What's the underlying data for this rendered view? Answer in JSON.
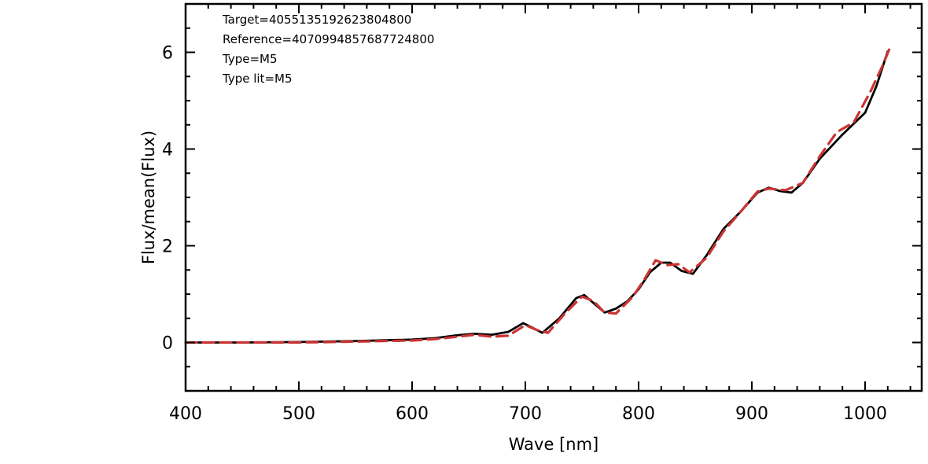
{
  "chart_data": {
    "type": "line",
    "title": "",
    "xlabel": "Wave [nm]",
    "ylabel": "Flux/mean(Flux)",
    "xlim": [
      400,
      1050
    ],
    "ylim": [
      -1,
      7
    ],
    "x_ticks": [
      400,
      500,
      600,
      700,
      800,
      900,
      1000
    ],
    "y_ticks": [
      0,
      2,
      4,
      6
    ],
    "grid": false,
    "legend": "none",
    "annotations": [
      "Target=4055135192623804800",
      "Reference=4070994857687724800",
      "Type=M5",
      "Type lit=M5"
    ],
    "series": [
      {
        "color": "#000000",
        "dash": "solid",
        "x": [
          400,
          450,
          500,
          550,
          600,
          620,
          640,
          655,
          670,
          685,
          698,
          705,
          715,
          730,
          745,
          752,
          760,
          770,
          780,
          790,
          800,
          810,
          820,
          828,
          838,
          848,
          860,
          875,
          890,
          905,
          915,
          925,
          935,
          945,
          960,
          980,
          1000,
          1010,
          1020
        ],
        "y": [
          0.0,
          0.0,
          0.01,
          0.03,
          0.06,
          0.09,
          0.15,
          0.18,
          0.16,
          0.22,
          0.4,
          0.32,
          0.2,
          0.5,
          0.92,
          0.98,
          0.82,
          0.62,
          0.7,
          0.85,
          1.1,
          1.45,
          1.65,
          1.65,
          1.48,
          1.42,
          1.8,
          2.35,
          2.7,
          3.1,
          3.2,
          3.13,
          3.1,
          3.3,
          3.8,
          4.3,
          4.75,
          5.3,
          6.02
        ]
      },
      {
        "color": "#cc3333",
        "dash": "dashed",
        "x": [
          400,
          450,
          500,
          550,
          600,
          620,
          640,
          655,
          670,
          685,
          700,
          710,
          720,
          735,
          750,
          760,
          770,
          780,
          795,
          805,
          815,
          825,
          835,
          845,
          860,
          875,
          890,
          905,
          915,
          930,
          945,
          960,
          975,
          990,
          1005,
          1015,
          1022
        ],
        "y": [
          0.0,
          0.0,
          0.0,
          0.02,
          0.04,
          0.07,
          0.12,
          0.16,
          0.12,
          0.14,
          0.36,
          0.26,
          0.2,
          0.6,
          0.95,
          0.86,
          0.62,
          0.6,
          0.95,
          1.3,
          1.7,
          1.6,
          1.62,
          1.45,
          1.75,
          2.3,
          2.7,
          3.12,
          3.18,
          3.15,
          3.3,
          3.85,
          4.35,
          4.55,
          5.2,
          5.7,
          6.1
        ]
      }
    ]
  }
}
